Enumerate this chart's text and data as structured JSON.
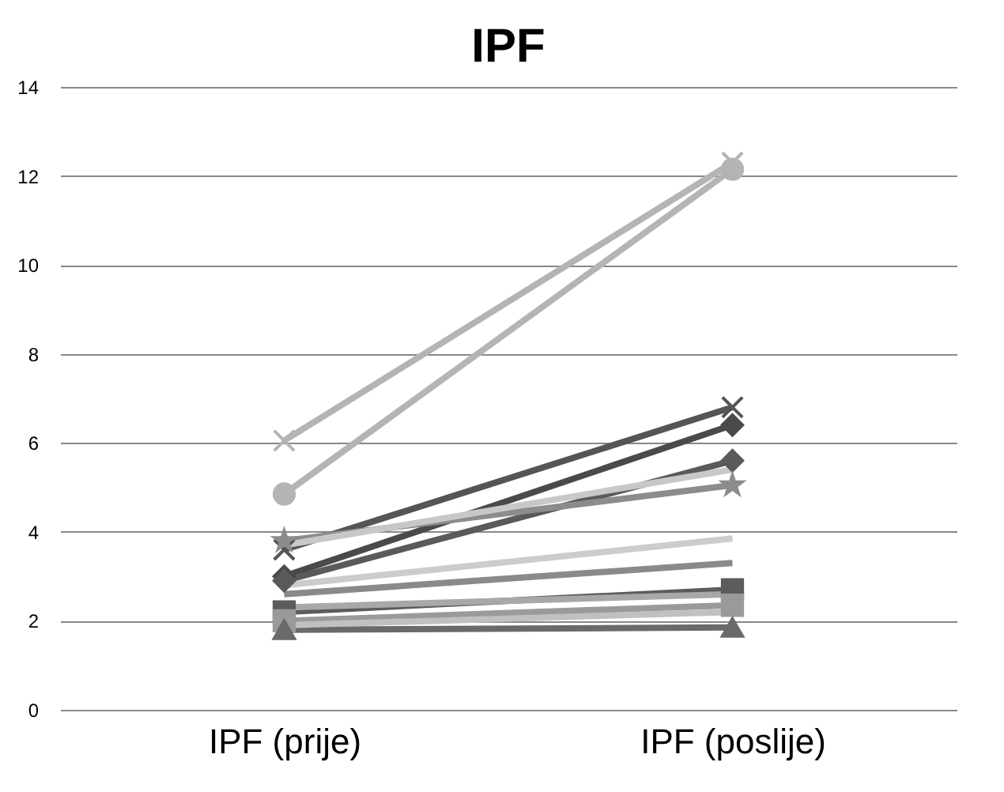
{
  "chart_data": {
    "type": "line",
    "title": "IPF",
    "categories": [
      "IPF (prije)",
      "IPF (poslije)"
    ],
    "ylim": [
      0,
      14
    ],
    "yticks": [
      0,
      2,
      4,
      6,
      8,
      10,
      12,
      14
    ],
    "grid": "y",
    "line_style": "solid",
    "series": [
      {
        "color": "#b4b4b4",
        "marker": "cross",
        "values": [
          6.05,
          12.3
        ]
      },
      {
        "color": "#b4b4b4",
        "marker": "circle",
        "values": [
          4.85,
          12.15
        ]
      },
      {
        "color": "#555555",
        "marker": "cross",
        "values": [
          3.6,
          6.8
        ]
      },
      {
        "color": "#4a4a4a",
        "marker": "diamond",
        "values": [
          3.0,
          6.4
        ]
      },
      {
        "color": "#5a5a5a",
        "marker": "diamond",
        "values": [
          2.9,
          5.6
        ]
      },
      {
        "color": "#8c8c8c",
        "marker": "star",
        "values": [
          3.8,
          5.05
        ]
      },
      {
        "color": "#c8c8c8",
        "marker": "none",
        "values": [
          3.7,
          5.4
        ]
      },
      {
        "color": "#cccccc",
        "marker": "none",
        "values": [
          2.8,
          3.85
        ]
      },
      {
        "color": "#8a8a8a",
        "marker": "none",
        "values": [
          2.6,
          3.3
        ]
      },
      {
        "color": "#5c5c5c",
        "marker": "square",
        "values": [
          2.2,
          2.7
        ]
      },
      {
        "color": "#9a9a9a",
        "marker": "square",
        "values": [
          2.0,
          2.35
        ]
      },
      {
        "color": "#6a6a6a",
        "marker": "triangle",
        "values": [
          1.8,
          1.85
        ]
      },
      {
        "color": "#a8a8a8",
        "marker": "none",
        "values": [
          2.3,
          2.6
        ]
      },
      {
        "color": "#c0c0c0",
        "marker": "none",
        "values": [
          1.9,
          2.2
        ]
      }
    ]
  }
}
